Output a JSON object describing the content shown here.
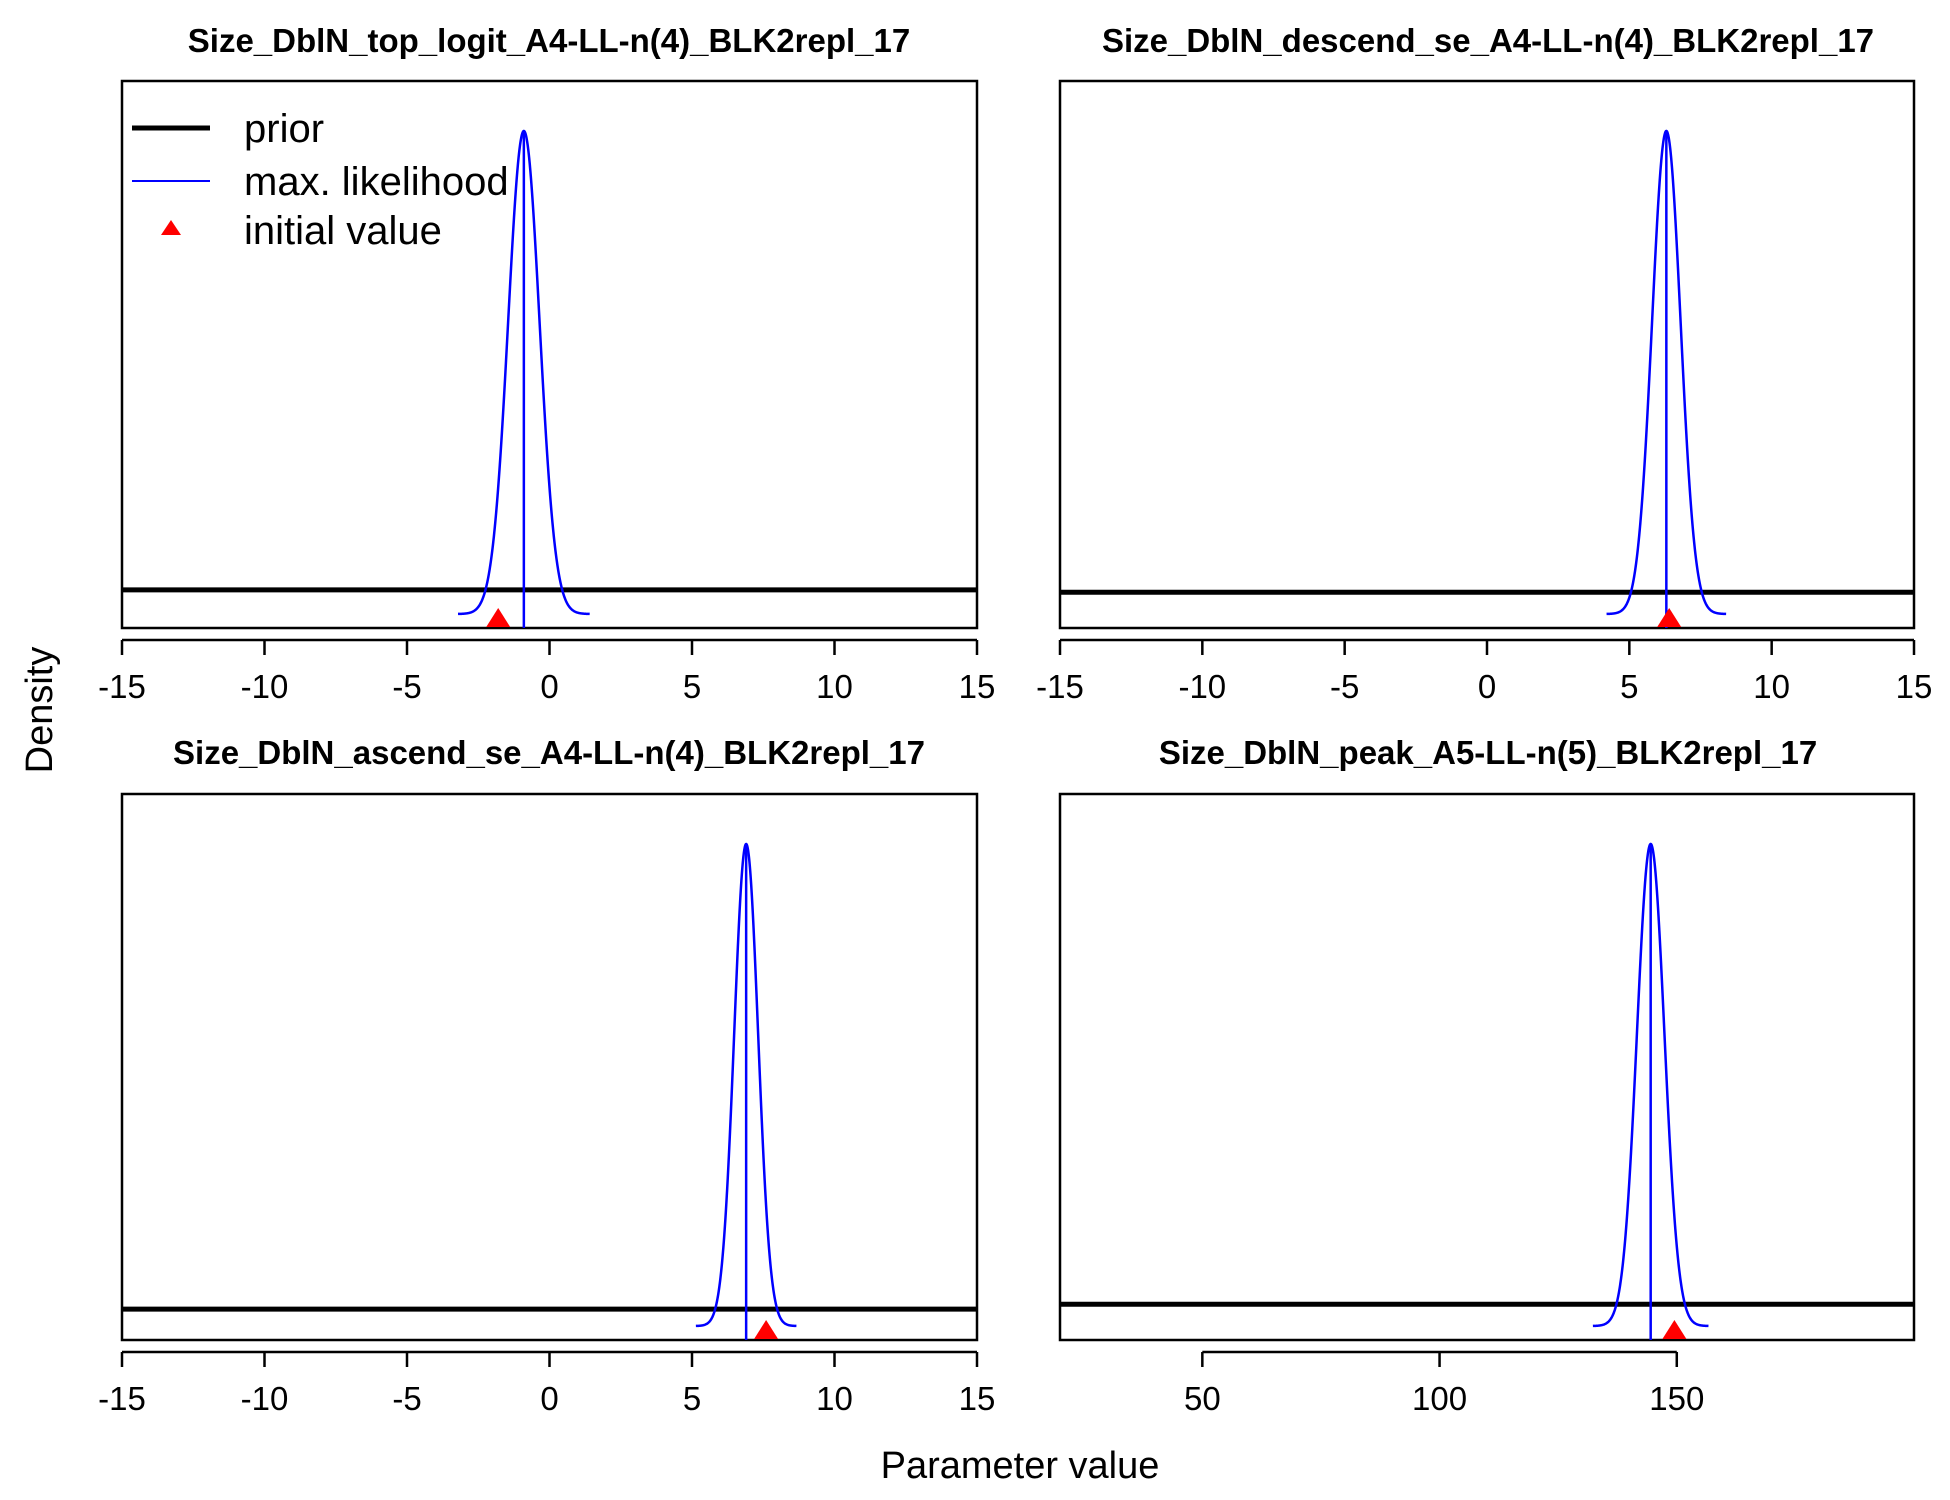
{
  "figure": {
    "ylabel": "Density",
    "xlabel": "Parameter value",
    "legend": {
      "position": "top-left of first panel",
      "items": [
        {
          "label": "prior",
          "style": "thick-line",
          "color": "#000000"
        },
        {
          "label": "max. likelihood",
          "style": "thin-line",
          "color": "#0000ff"
        },
        {
          "label": "initial value",
          "style": "triangle",
          "color": "#ff0000"
        }
      ]
    }
  },
  "colors": {
    "prior": "#000000",
    "max_likelihood": "#0000ff",
    "initial_value": "#ff0000"
  },
  "chart_data": [
    {
      "type": "line",
      "title": "Size_DblN_top_logit_A4-LL-n(4)_BLK2repl_17",
      "xlim": [
        -15,
        15
      ],
      "xticks": [
        -15,
        -10,
        -5,
        0,
        5,
        10,
        15
      ],
      "tick_labels": [
        "-15",
        "-10",
        "-5",
        "0",
        "5",
        "10",
        "15"
      ],
      "prior_level": 0.05,
      "mle": -0.9,
      "mle_sd": 0.55,
      "initial_value": -1.8
    },
    {
      "type": "line",
      "title": "Size_DblN_descend_se_A4-LL-n(4)_BLK2repl_17",
      "xlim": [
        -15,
        15
      ],
      "xticks": [
        -15,
        -10,
        -5,
        0,
        5,
        10,
        15
      ],
      "tick_labels": [
        "-15",
        "-10",
        "-5",
        "0",
        "5",
        "10",
        "15"
      ],
      "prior_level": 0.045,
      "mle": 6.3,
      "mle_sd": 0.5,
      "initial_value": 6.4
    },
    {
      "type": "line",
      "title": "Size_DblN_ascend_se_A4-LL-n(4)_BLK2repl_17",
      "xlim": [
        -15,
        15
      ],
      "xticks": [
        -15,
        -10,
        -5,
        0,
        5,
        10,
        15
      ],
      "tick_labels": [
        "-15",
        "-10",
        "-5",
        "0",
        "5",
        "10",
        "15"
      ],
      "prior_level": 0.035,
      "mle": 6.9,
      "mle_sd": 0.42,
      "initial_value": 7.6
    },
    {
      "type": "line",
      "title": "Size_DblN_peak_A5-LL-n(5)_BLK2repl_17",
      "xlim": [
        20,
        200
      ],
      "xticks": [
        50,
        100,
        150
      ],
      "tick_labels": [
        "50",
        "100",
        "150"
      ],
      "prior_level": 0.045,
      "mle": 144.5,
      "mle_sd": 2.9,
      "initial_value": 149.5
    }
  ]
}
